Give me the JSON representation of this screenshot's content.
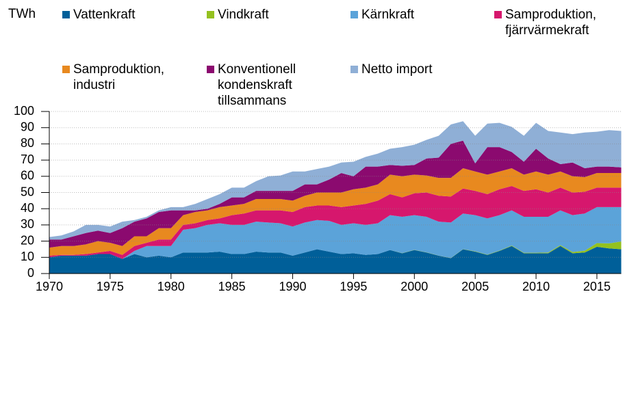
{
  "chart_data": {
    "type": "stacked_area",
    "y_axis_label": "TWh",
    "x": [
      1970,
      1971,
      1972,
      1973,
      1974,
      1975,
      1976,
      1977,
      1978,
      1979,
      1980,
      1981,
      1982,
      1983,
      1984,
      1985,
      1986,
      1987,
      1988,
      1989,
      1990,
      1991,
      1992,
      1993,
      1994,
      1995,
      1996,
      1997,
      1998,
      1999,
      2000,
      2001,
      2002,
      2003,
      2004,
      2005,
      2006,
      2007,
      2008,
      2009,
      2010,
      2011,
      2012,
      2013,
      2014,
      2015,
      2016,
      2017
    ],
    "series": [
      {
        "name": "Vattenkraft",
        "color": "#005f99",
        "values": [
          10,
          11,
          11,
          11,
          12,
          12,
          9,
          12,
          10,
          11,
          10,
          13,
          13,
          13,
          13.5,
          12,
          12,
          13.5,
          13,
          13,
          11,
          13,
          15,
          13.5,
          12,
          12.5,
          11.5,
          12,
          14.5,
          12.5,
          14.5,
          13,
          11,
          9.5,
          15,
          13.5,
          11.5,
          14,
          17,
          12.5,
          12.5,
          12.5,
          17,
          12.5,
          13,
          16.5,
          15.5,
          15
        ]
      },
      {
        "name": "Vindkraft",
        "color": "#94c11f",
        "values": [
          0,
          0,
          0,
          0,
          0,
          0,
          0,
          0,
          0,
          0,
          0,
          0,
          0,
          0,
          0,
          0,
          0,
          0,
          0,
          0,
          0,
          0,
          0,
          0,
          0,
          0,
          0,
          0,
          0,
          0.1,
          0.1,
          0.1,
          0.1,
          0.1,
          0.1,
          0.2,
          0.2,
          0.2,
          0.3,
          0.3,
          0.3,
          0.5,
          0.5,
          0.8,
          1.1,
          2.3,
          3.1,
          4.8
        ]
      },
      {
        "name": "Kärnkraft",
        "color": "#5ba3d9",
        "values": [
          0,
          0,
          0,
          0,
          0,
          0,
          0,
          2,
          7,
          6,
          7,
          14,
          15,
          17,
          17.5,
          18,
          18,
          18.5,
          18.5,
          18,
          18,
          18.5,
          18,
          19,
          18,
          18.5,
          18.5,
          19,
          21.5,
          22.4,
          21.4,
          21.9,
          20.9,
          21.9,
          21.9,
          22.3,
          22.3,
          21.8,
          21.7,
          22.2,
          22.2,
          22,
          21.5,
          22.7,
          22.9,
          22.2,
          22.4,
          21.2
        ]
      },
      {
        "name": "Samproduktion, fjärrvärmekraft",
        "color": "#d6176d",
        "values": [
          1,
          0.5,
          0.5,
          1,
          1,
          2,
          2.5,
          3,
          2,
          4,
          4,
          3,
          3,
          3,
          3,
          6,
          7,
          7,
          7.5,
          8,
          9,
          9.5,
          9,
          9.5,
          11,
          11,
          13,
          14,
          13,
          12,
          13.5,
          15,
          16,
          16,
          15.5,
          15,
          15,
          16,
          15,
          16,
          17,
          15,
          14,
          14,
          13.5,
          12,
          12,
          12
        ]
      },
      {
        "name": "Samproduktion, industri",
        "color": "#e8891f",
        "values": [
          5,
          5.5,
          5.5,
          6,
          7,
          5,
          5.5,
          6,
          4,
          7,
          7,
          6,
          7,
          6,
          7,
          6,
          6,
          7,
          7,
          7,
          7,
          7,
          8,
          8,
          9,
          10,
          10,
          10,
          12,
          13,
          11.5,
          10.5,
          11,
          11.5,
          12.5,
          12,
          12,
          11,
          11,
          10,
          11,
          11,
          10,
          10,
          9,
          9,
          9,
          9
        ]
      },
      {
        "name": "Konventionell kondenskraft tillsammans",
        "color": "#8b0a6f",
        "values": [
          5,
          4,
          6,
          7,
          6.5,
          6,
          11,
          9,
          11,
          10,
          11,
          3,
          1,
          1,
          2,
          5,
          4,
          5,
          5,
          5,
          6,
          7,
          5,
          8,
          12,
          8,
          13,
          11,
          6,
          6.5,
          6,
          10.5,
          12.5,
          21,
          17,
          5,
          17,
          15,
          10,
          8,
          14,
          10,
          4.5,
          8.5,
          5.5,
          4,
          4,
          3.5
        ]
      },
      {
        "name": "Netto import",
        "color": "#8fafd6",
        "values": [
          1.5,
          2.5,
          3,
          5,
          3.5,
          4,
          4,
          1,
          1,
          1,
          2,
          2,
          4,
          6,
          6,
          6,
          6,
          6,
          9,
          9.5,
          12,
          8,
          9.5,
          8,
          6.5,
          9,
          6,
          8,
          10,
          11.5,
          12.5,
          11.5,
          13.5,
          12,
          12,
          17,
          14.5,
          15,
          15.5,
          16,
          16,
          17,
          19.5,
          17.5,
          22,
          21.5,
          22.5,
          22.5
        ]
      }
    ],
    "xlim": [
      1970,
      2017
    ],
    "xticks": [
      1970,
      1975,
      1980,
      1985,
      1990,
      1995,
      2000,
      2005,
      2010,
      2015
    ],
    "ylim": [
      0,
      100
    ],
    "yticks": [
      0,
      10,
      20,
      30,
      40,
      50,
      60,
      70,
      80,
      90,
      100
    ],
    "grid": true
  }
}
